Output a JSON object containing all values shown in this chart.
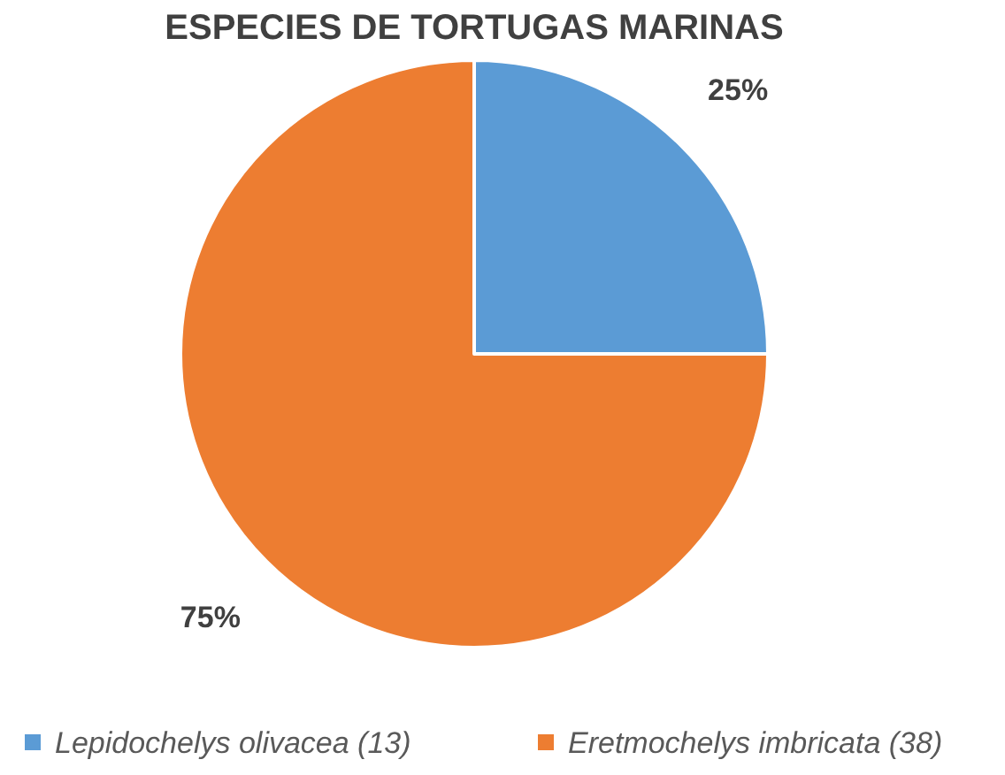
{
  "chart_data": {
    "type": "pie",
    "title": "ESPECIES DE TORTUGAS MARINAS",
    "categories": [
      "Lepidochelys olivacea (13)",
      "Eretmochelys imbricata (38)"
    ],
    "values": [
      25,
      75
    ],
    "colors": [
      "#5b9bd5",
      "#ed7d31"
    ],
    "value_labels": [
      "25%",
      "75%"
    ],
    "legend": "bottom"
  }
}
